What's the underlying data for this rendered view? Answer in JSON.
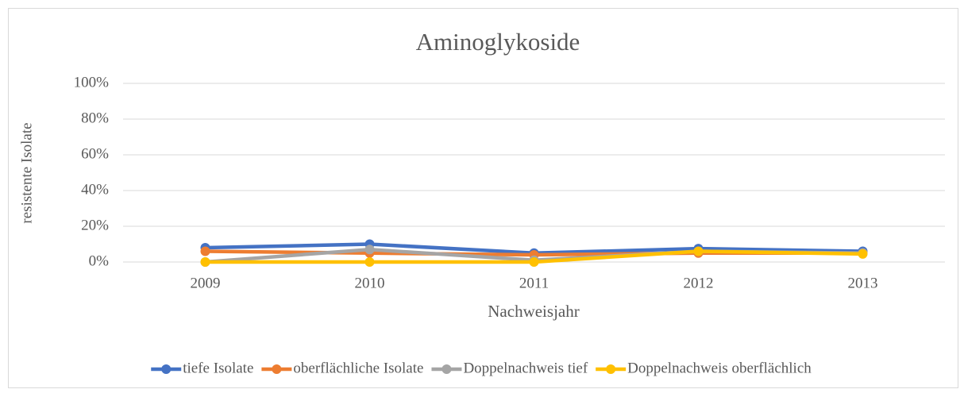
{
  "chart_data": {
    "type": "line",
    "title": "Aminoglykoside",
    "x_label": "Nachweisjahr",
    "y_label": "resistente Isolate",
    "categories": [
      "2009",
      "2010",
      "2011",
      "2012",
      "2013"
    ],
    "series": [
      {
        "name": "tiefe Isolate",
        "color": "#4472c4",
        "values": [
          8,
          10,
          5,
          7.5,
          6
        ]
      },
      {
        "name": "oberflächliche Isolate",
        "color": "#ed7d31",
        "values": [
          6,
          5,
          4,
          5,
          5
        ]
      },
      {
        "name": "Doppelnachweis tief",
        "color": "#a5a5a5",
        "values": [
          0,
          7,
          1,
          6,
          5
        ]
      },
      {
        "name": "Doppelnachweis oberflächlich",
        "color": "#ffc000",
        "values": [
          0,
          0,
          0,
          6,
          4.5
        ]
      }
    ],
    "ylim": [
      0,
      100
    ],
    "yticks": [
      {
        "value": 0,
        "label": "0%"
      },
      {
        "value": 20,
        "label": "20%"
      },
      {
        "value": 40,
        "label": "40%"
      },
      {
        "value": 60,
        "label": "60%"
      },
      {
        "value": 80,
        "label": "80%"
      },
      {
        "value": 100,
        "label": "100%"
      }
    ],
    "grid": true,
    "legend": "bottom"
  }
}
